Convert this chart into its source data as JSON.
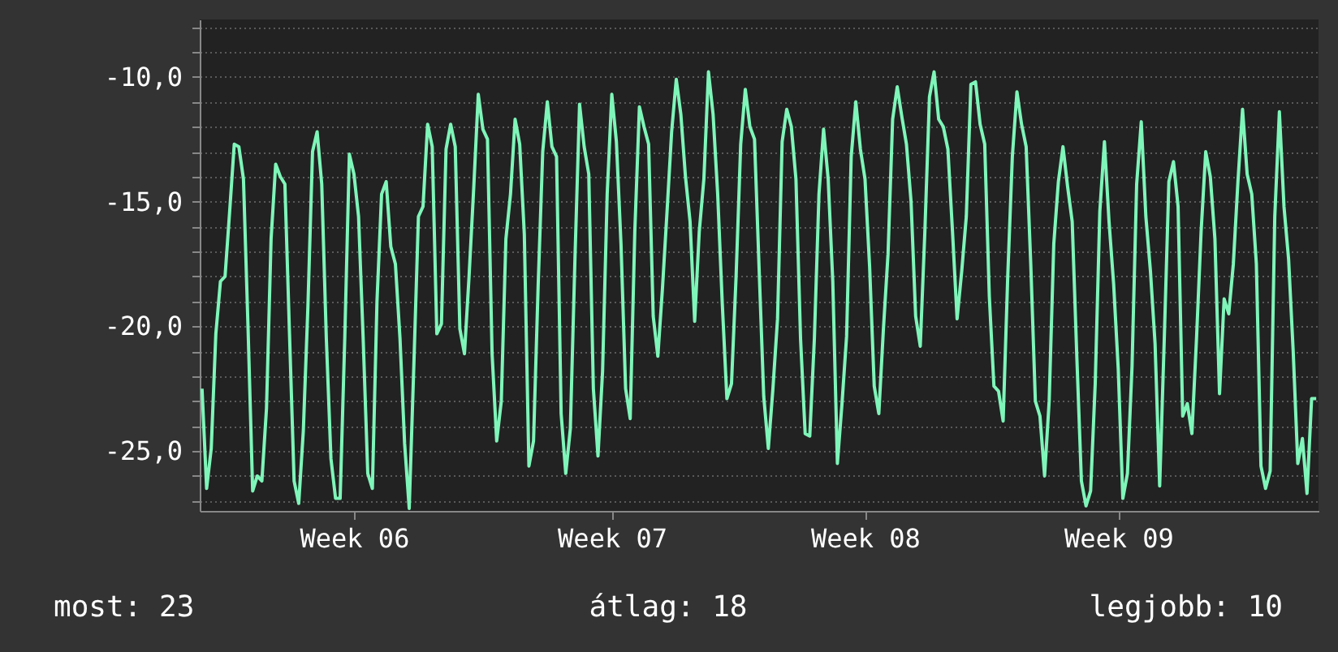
{
  "chart_data": {
    "type": "line",
    "categories": [
      null,
      null,
      null,
      null,
      null,
      null,
      null,
      null,
      null,
      null,
      null,
      null,
      null,
      null,
      null,
      null,
      null,
      null,
      null,
      null,
      null,
      null,
      null,
      null,
      null,
      null,
      null,
      null,
      null,
      null,
      null,
      null,
      null,
      "Week 06",
      null,
      null,
      null,
      null,
      null,
      null,
      null,
      null,
      null,
      null,
      null,
      null,
      null,
      null,
      null,
      null,
      null,
      null,
      null,
      null,
      null,
      null,
      null,
      null,
      null,
      null,
      null,
      null,
      null,
      null,
      null,
      null,
      null,
      null,
      null,
      null,
      null,
      null,
      null,
      null,
      null,
      null,
      null,
      null,
      null,
      null,
      null,
      null,
      null,
      null,
      null,
      null,
      null,
      null,
      null,
      "Week 07",
      null,
      null,
      null,
      null,
      null,
      null,
      null,
      null,
      null,
      null,
      null,
      null,
      null,
      null,
      null,
      null,
      null,
      null,
      null,
      null,
      null,
      null,
      null,
      null,
      null,
      null,
      null,
      null,
      null,
      null,
      null,
      null,
      null,
      null,
      null,
      null,
      null,
      null,
      null,
      null,
      null,
      null,
      null,
      null,
      null,
      null,
      null,
      null,
      null,
      null,
      null,
      null,
      null,
      null,
      "Week 08",
      null,
      null,
      null,
      null,
      null,
      null,
      null,
      null,
      null,
      null,
      null,
      null,
      null,
      null,
      null,
      null,
      null,
      null,
      null,
      null,
      null,
      null,
      null,
      null,
      null,
      null,
      null,
      null,
      null,
      null,
      null,
      null,
      null,
      null,
      null,
      null,
      null,
      null,
      null,
      null,
      null,
      null,
      null,
      null,
      null,
      null,
      null,
      null,
      null,
      null,
      null,
      null,
      null,
      null,
      "Week 09",
      null,
      null,
      null,
      null,
      null,
      null,
      null,
      null,
      null,
      null,
      null,
      null,
      null,
      null,
      null,
      null,
      null,
      null,
      null,
      null,
      null,
      null,
      null,
      null,
      null,
      null,
      null,
      null,
      null,
      null,
      null,
      null,
      null,
      null,
      null,
      null,
      null,
      null,
      null,
      null,
      null,
      null,
      null
    ],
    "series": [
      {
        "color": "#7ff5b9",
        "values": [
          -22.5,
          -26.5,
          -24.9,
          -20.3,
          -18.2,
          -18.0,
          -15.4,
          -12.7,
          -12.8,
          -14.1,
          -20.1,
          -26.6,
          -26.0,
          -26.2,
          -23.3,
          -16.5,
          -13.5,
          -14.0,
          -14.3,
          -20.3,
          -26.2,
          -27.1,
          -24.2,
          -19.2,
          -13.0,
          -12.2,
          -14.3,
          -20.5,
          -25.3,
          -26.9,
          -26.9,
          -20.5,
          -13.1,
          -13.9,
          -15.6,
          -20.5,
          -25.9,
          -26.5,
          -19.0,
          -14.7,
          -14.2,
          -16.8,
          -17.5,
          -20.5,
          -24.7,
          -27.3,
          -21.6,
          -15.6,
          -15.2,
          -11.9,
          -12.8,
          -20.3,
          -19.9,
          -12.9,
          -11.9,
          -12.8,
          -20.1,
          -21.1,
          -18.0,
          -14.5,
          -10.7,
          -12.1,
          -12.5,
          -21.1,
          -24.6,
          -23.0,
          -16.5,
          -14.7,
          -11.7,
          -12.7,
          -16.3,
          -25.6,
          -24.6,
          -18.4,
          -13.0,
          -11.0,
          -12.8,
          -13.2,
          -23.5,
          -25.9,
          -24.1,
          -17.3,
          -11.1,
          -12.8,
          -13.9,
          -22.5,
          -25.2,
          -21.8,
          -14.7,
          -10.7,
          -12.6,
          -16.7,
          -22.5,
          -23.7,
          -16.2,
          -11.2,
          -12.0,
          -12.7,
          -19.6,
          -21.2,
          -18.5,
          -15.4,
          -12.2,
          -10.1,
          -11.5,
          -14.0,
          -15.8,
          -19.8,
          -16.2,
          -14.1,
          -9.8,
          -11.5,
          -14.7,
          -19.1,
          -22.9,
          -22.3,
          -18.0,
          -12.7,
          -10.5,
          -12.0,
          -12.5,
          -17.7,
          -22.8,
          -24.9,
          -22.5,
          -19.7,
          -12.6,
          -11.3,
          -12.0,
          -14.1,
          -20.5,
          -24.3,
          -24.4,
          -20.5,
          -14.7,
          -12.1,
          -14.1,
          -18.2,
          -25.5,
          -23.1,
          -20.4,
          -13.2,
          -11.0,
          -12.9,
          -14.1,
          -17.6,
          -22.4,
          -23.5,
          -20.1,
          -17.1,
          -11.7,
          -10.4,
          -11.6,
          -12.7,
          -15.0,
          -19.6,
          -20.8,
          -16.2,
          -10.8,
          -9.8,
          -11.7,
          -12.0,
          -12.9,
          -16.2,
          -19.7,
          -17.8,
          -15.6,
          -10.3,
          -10.2,
          -11.9,
          -12.7,
          -18.8,
          -22.4,
          -22.6,
          -23.8,
          -18.0,
          -13.2,
          -10.6,
          -11.9,
          -12.8,
          -17.5,
          -23.0,
          -23.6,
          -26.0,
          -23.0,
          -16.7,
          -14.2,
          -12.8,
          -14.4,
          -15.8,
          -21.2,
          -26.2,
          -27.2,
          -26.6,
          -22.3,
          -15.4,
          -12.6,
          -15.8,
          -18.3,
          -21.7,
          -26.9,
          -25.9,
          -21.6,
          -14.3,
          -11.8,
          -15.6,
          -17.8,
          -20.7,
          -26.4,
          -20.5,
          -14.2,
          -13.4,
          -15.2,
          -23.6,
          -23.1,
          -24.3,
          -20.5,
          -16.2,
          -13.0,
          -14.0,
          -16.5,
          -22.7,
          -18.9,
          -19.5,
          -17.5,
          -14.2,
          -11.3,
          -13.9,
          -14.7,
          -17.5,
          -25.6,
          -26.5,
          -25.8,
          -15.6,
          -11.4,
          -15.2,
          -17.3,
          -21.0,
          -25.5,
          -24.5,
          -26.7,
          -22.9,
          -22.9
        ]
      }
    ],
    "ylim": [
      -27.4,
      -7.7
    ],
    "yticks": [
      {
        "value": -27,
        "label": null
      },
      {
        "value": -26,
        "label": null
      },
      {
        "value": -25,
        "label": "-25,0"
      },
      {
        "value": -24,
        "label": null
      },
      {
        "value": -23,
        "label": null
      },
      {
        "value": -22,
        "label": null
      },
      {
        "value": -21,
        "label": null
      },
      {
        "value": -20,
        "label": "-20,0"
      },
      {
        "value": -19,
        "label": null
      },
      {
        "value": -18,
        "label": null
      },
      {
        "value": -17,
        "label": null
      },
      {
        "value": -16,
        "label": null
      },
      {
        "value": -15,
        "label": "-15,0"
      },
      {
        "value": -14,
        "label": null
      },
      {
        "value": -13,
        "label": null
      },
      {
        "value": -12,
        "label": null
      },
      {
        "value": -11,
        "label": null
      },
      {
        "value": -10,
        "label": "-10,0"
      },
      {
        "value": -9,
        "label": null
      },
      {
        "value": -8,
        "label": null
      }
    ],
    "grid": "y",
    "annotations": [
      "most: 23",
      "átlag: 18",
      "legjobb: 10"
    ]
  }
}
